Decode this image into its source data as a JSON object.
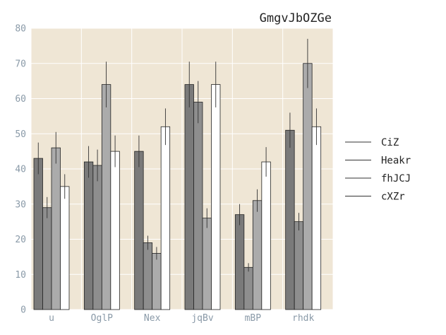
{
  "chart_data": {
    "type": "bar",
    "title": "GmgvJbOZGe",
    "xlabel": "",
    "ylabel": "",
    "categories": [
      "u",
      "OglP",
      "Nex",
      "jqBv",
      "mBP",
      "rhdk"
    ],
    "ylim": [
      0,
      80
    ],
    "yticks": [
      0,
      10,
      20,
      30,
      40,
      50,
      60,
      70,
      80
    ],
    "grid": true,
    "legend_position": "right",
    "plot_background": "#efe6d5",
    "grid_color": "#ffffff",
    "series": [
      {
        "name": "CiZ",
        "color": "#7a7a7a",
        "values": [
          43,
          42,
          45,
          64,
          27,
          51
        ],
        "errors": [
          4.5,
          4.5,
          4.5,
          6.5,
          3,
          5
        ]
      },
      {
        "name": "Heakr",
        "color": "#8e8e8e",
        "values": [
          29,
          41,
          19,
          59,
          12,
          25
        ],
        "errors": [
          3,
          4.5,
          2,
          6,
          1.2,
          2.5
        ]
      },
      {
        "name": "fhJCJ",
        "color": "#ababab",
        "values": [
          46,
          64,
          16,
          26,
          31,
          70
        ],
        "errors": [
          4.5,
          6.5,
          1.8,
          2.8,
          3.2,
          7
        ]
      },
      {
        "name": "cXZr",
        "color": "#ffffff",
        "values": [
          35,
          45,
          52,
          64,
          42,
          52
        ],
        "errors": [
          3.5,
          4.5,
          5.2,
          6.5,
          4.2,
          5.2
        ]
      }
    ]
  }
}
